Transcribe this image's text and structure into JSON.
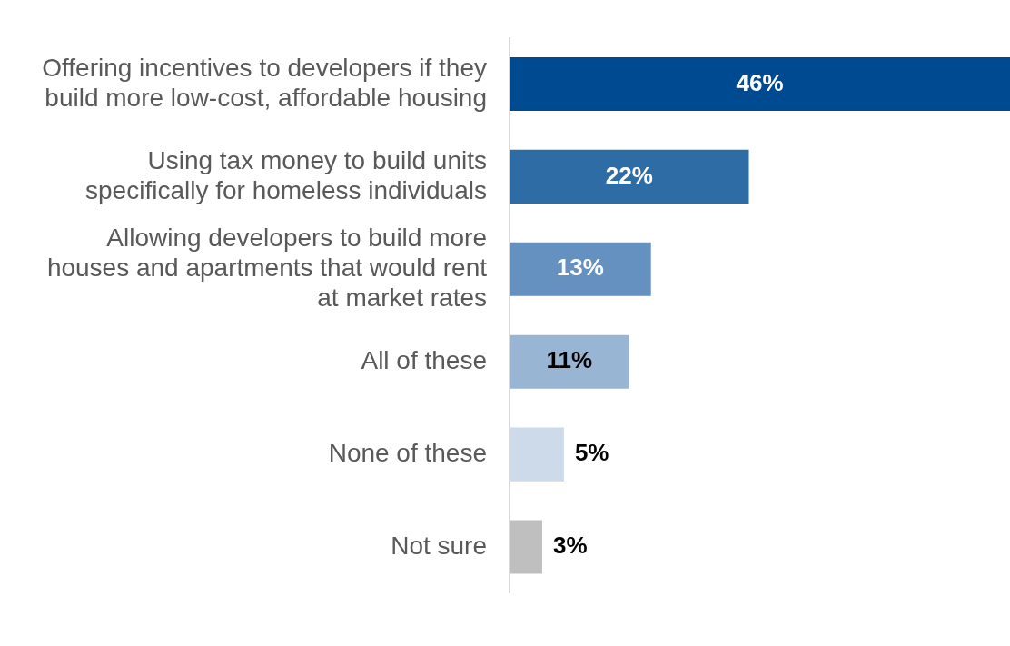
{
  "chart_data": {
    "type": "bar",
    "orientation": "horizontal",
    "value_labels": [
      "46%",
      "22%",
      "13%",
      "11%",
      "5%",
      "3%"
    ],
    "categories": [
      "Offering incentives to developers if they build more low-cost, affordable housing",
      "Using tax money to build units specifically for homeless individuals",
      "Allowing developers to build more houses and apartments that would rent at market rates",
      "All of these",
      "None of these",
      "Not sure"
    ],
    "values": [
      46,
      22,
      13,
      11,
      5,
      3
    ],
    "colors": [
      "#004a91",
      "#2e6ca6",
      "#6591c0",
      "#98b5d4",
      "#ccdaea",
      "#bfbfbf"
    ]
  }
}
